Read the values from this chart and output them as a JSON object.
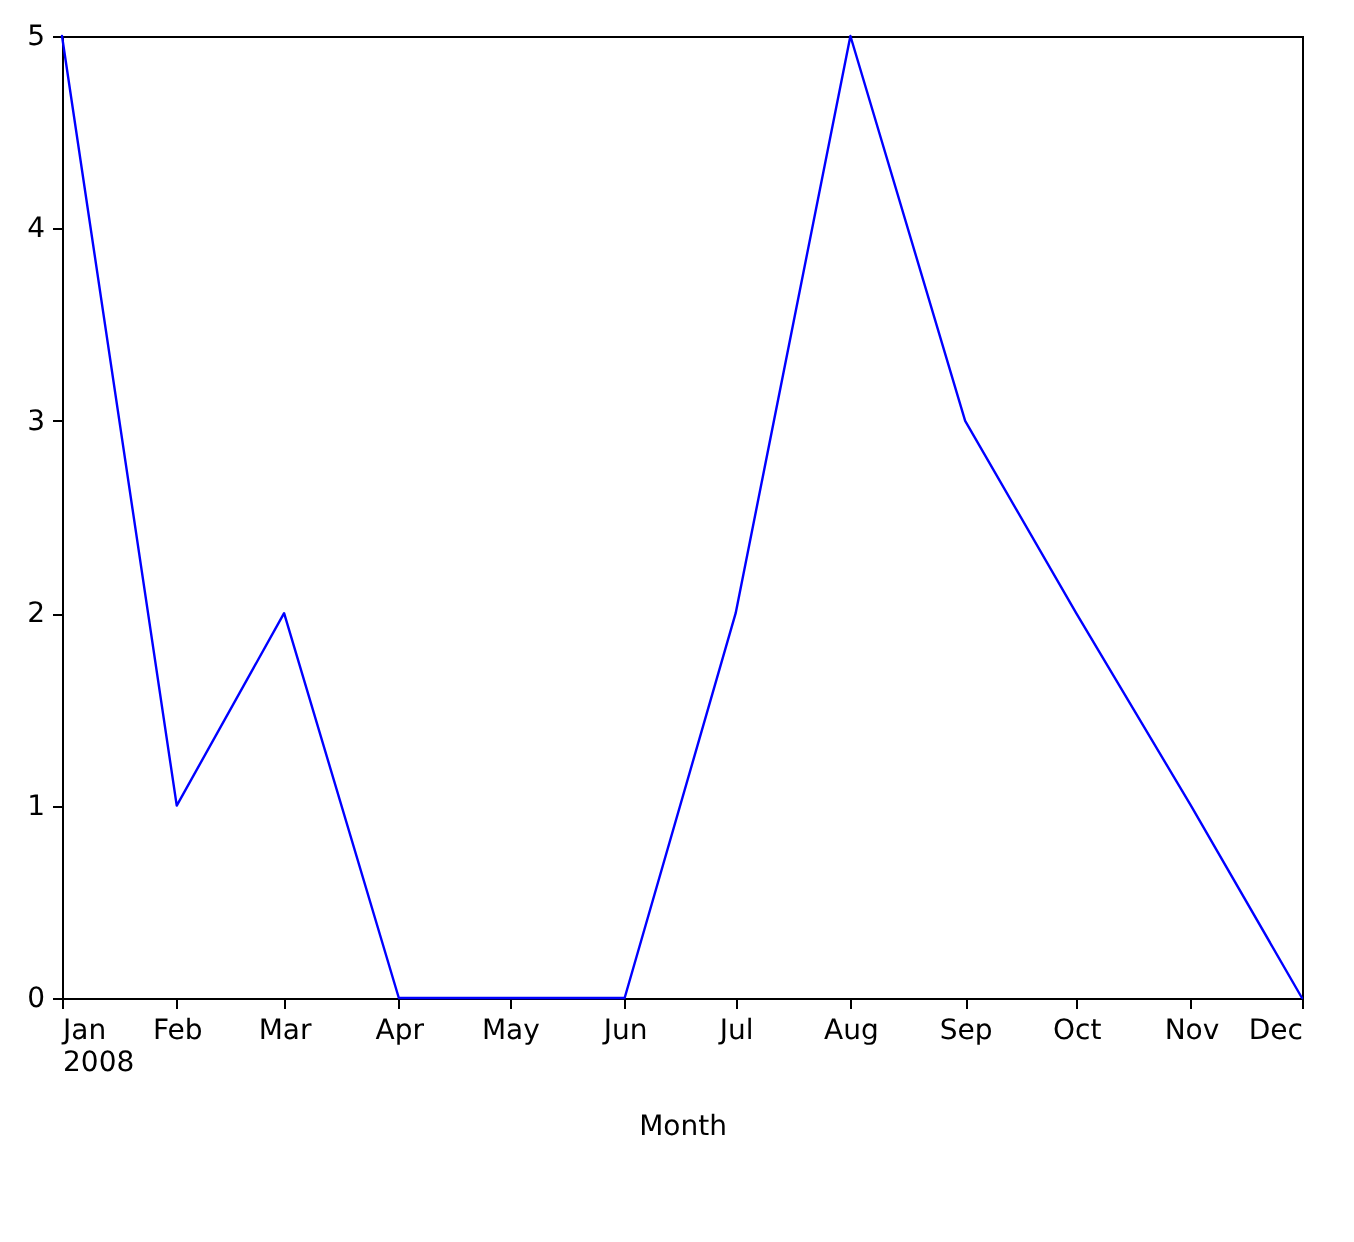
{
  "chart_data": {
    "type": "line",
    "xlabel": "Month",
    "x": [
      "2008-01",
      "2008-02",
      "2008-03",
      "2008-04",
      "2008-05",
      "2008-06",
      "2008-07",
      "2008-08",
      "2008-09",
      "2008-10",
      "2008-11",
      "2008-12"
    ],
    "series": [
      {
        "color": "#0000ff",
        "values": [
          5,
          1,
          2,
          0,
          0,
          0,
          2,
          5,
          3,
          2,
          1,
          0
        ]
      }
    ],
    "xlim": [
      "2008-01",
      "2008-12"
    ],
    "xticks": [
      {
        "value": "2008-01",
        "label": "Jan\n2008"
      },
      {
        "value": "2008-02",
        "label": "Feb"
      },
      {
        "value": "2008-03",
        "label": "Mar"
      },
      {
        "value": "2008-04",
        "label": "Apr"
      },
      {
        "value": "2008-05",
        "label": "May"
      },
      {
        "value": "2008-06",
        "label": "Jun"
      },
      {
        "value": "2008-07",
        "label": "Jul"
      },
      {
        "value": "2008-08",
        "label": "Aug"
      },
      {
        "value": "2008-09",
        "label": "Sep"
      },
      {
        "value": "2008-10",
        "label": "Oct"
      },
      {
        "value": "2008-11",
        "label": "Nov"
      },
      {
        "value": "2008-12",
        "label": "Dec"
      }
    ],
    "ylim": [
      0,
      5
    ],
    "yticks": [
      0,
      1,
      2,
      3,
      4,
      5
    ],
    "grid": false,
    "line_style": "solid",
    "marker": "none"
  }
}
